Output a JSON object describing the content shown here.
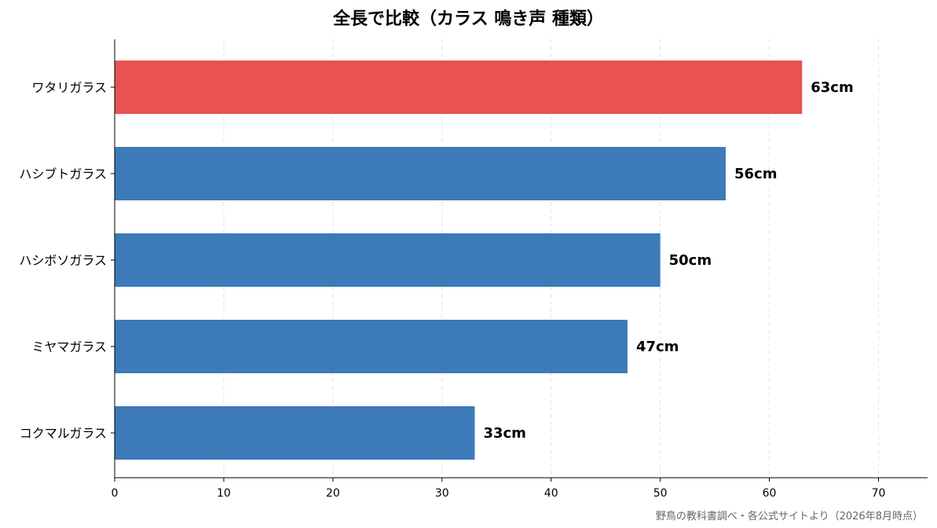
{
  "chart_data": {
    "type": "bar",
    "orientation": "horizontal",
    "title": "全長で比較（カラス 鳴き声 種類）",
    "categories": [
      "ワタリガラス",
      "ハシブトガラス",
      "ハシボソガラス",
      "ミヤマガラス",
      "コクマルガラス"
    ],
    "values": [
      63,
      56,
      50,
      47,
      33
    ],
    "value_labels": [
      "63cm",
      "56cm",
      "50cm",
      "47cm",
      "33cm"
    ],
    "highlight_index": 0,
    "colors": {
      "highlight": "#e85252",
      "default": "#3d7ab8"
    },
    "xlim": [
      0,
      74.5
    ],
    "xticks": [
      0,
      10,
      20,
      30,
      40,
      50,
      60,
      70
    ],
    "xlabel": "",
    "ylabel": "",
    "grid": "x-dashed",
    "legend": "none"
  },
  "source_note": "野鳥の教科書調べ・各公式サイトより（2026年8月時点）"
}
